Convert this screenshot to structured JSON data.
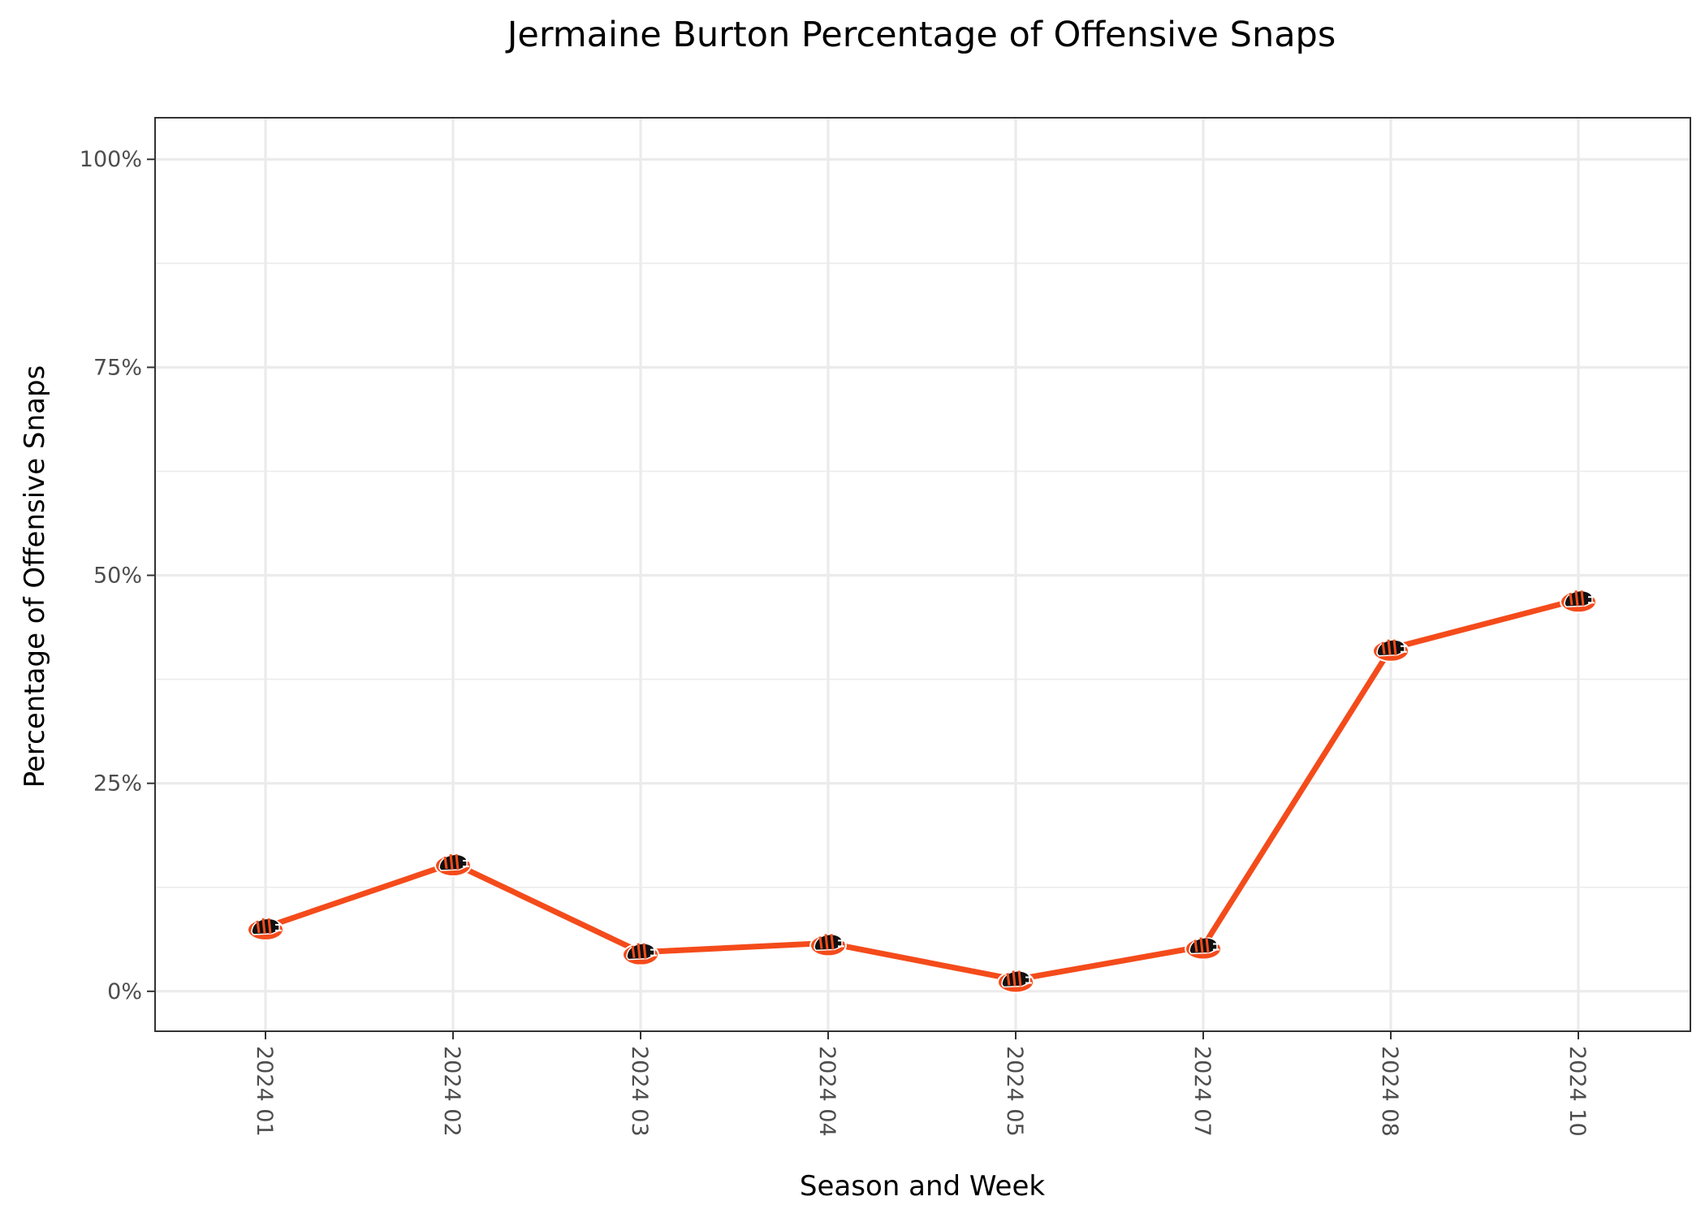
{
  "chart_data": {
    "type": "line",
    "title": "Jermaine Burton Percentage of Offensive Snaps",
    "xlabel": "Season and Week",
    "ylabel": "Percentage of Offensive Snaps",
    "categories": [
      "2024 01",
      "2024 02",
      "2024 03",
      "2024 04",
      "2024 05",
      "2024 07",
      "2024 08",
      "2024 10"
    ],
    "values": [
      7.7,
      15.4,
      4.7,
      5.8,
      1.4,
      5.4,
      41.2,
      47.1
    ],
    "y_tick_labels": [
      "0%",
      "25%",
      "50%",
      "75%",
      "100%"
    ],
    "y_ticks": [
      0,
      25,
      50,
      75,
      100
    ],
    "ylim": [
      -4.8,
      105
    ],
    "grid": true,
    "line_color": "#f44b1b",
    "marker_icon": "bengals-helmet-logo-icon"
  }
}
